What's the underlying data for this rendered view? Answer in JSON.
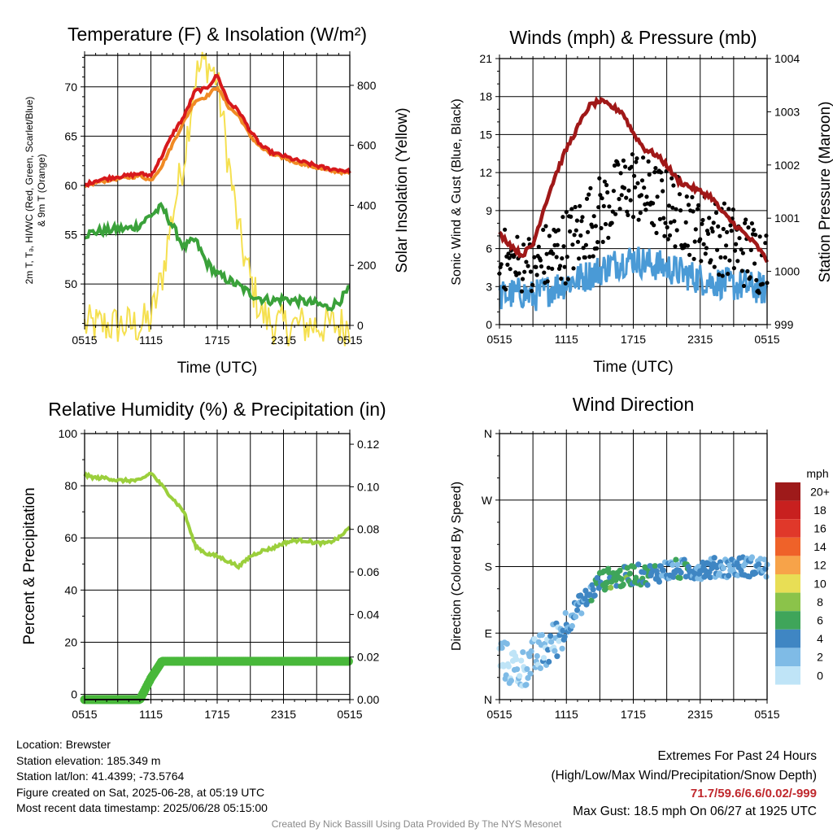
{
  "colors": {
    "temp_red": "#d7191c",
    "hi_orange": "#f08a24",
    "dew_green": "#3aa13a",
    "solar_yellow": "#f5e050",
    "wind_blue": "#4a9ad6",
    "gust_black": "#000000",
    "pressure_maroon": "#a01818",
    "rh_green": "#9bcf3c",
    "precip_green": "#48b83a",
    "extremes_red": "#c0282d"
  },
  "chart_data": [
    {
      "type": "line",
      "title": "Temperature (F) & Insolation (W/m²)",
      "xlabel": "Time (UTC)",
      "ylabel_left_line1": "2m T, Tₔ, HI/WC (Red, Green, Scarlet/Blue)",
      "ylabel_left_line2": "& 9m T (Orange)",
      "ylabel_right": "Solar Insolation (Yellow)",
      "x_ticks": [
        "0515",
        "1115",
        "1715",
        "2315",
        "0515"
      ],
      "y_left_ticks": [
        "50",
        "55",
        "60",
        "65",
        "70"
      ],
      "y_left_range": [
        45.8,
        73.2
      ],
      "y_right_ticks": [
        "0",
        "200",
        "400",
        "600",
        "800"
      ],
      "y_right_range": [
        0,
        900
      ],
      "grid": true,
      "hours": [
        0,
        1,
        2,
        3,
        4,
        5,
        6,
        7,
        8,
        9,
        10,
        11,
        12,
        13,
        14,
        15,
        16,
        17,
        18,
        19,
        20,
        21,
        22,
        23,
        24
      ],
      "series": [
        {
          "key": "temp",
          "values": [
            60.0,
            60.5,
            60.7,
            60.9,
            61.0,
            61.2,
            61.0,
            63.0,
            65.3,
            67.0,
            69.6,
            69.8,
            71.2,
            68.5,
            67.5,
            65.5,
            64.0,
            63.3,
            63.0,
            62.6,
            62.3,
            62.0,
            61.7,
            61.6,
            61.4
          ]
        },
        {
          "key": "dewpoint",
          "values": [
            55.0,
            55.3,
            55.4,
            55.6,
            55.6,
            56.0,
            57.0,
            57.8,
            55.8,
            53.7,
            54.5,
            52.2,
            51.0,
            50.4,
            49.8,
            49.0,
            48.5,
            48.3,
            48.5,
            48.3,
            48.2,
            48.0,
            47.6,
            48.2,
            49.5
          ]
        },
        {
          "key": "temp9m",
          "values": [
            59.8,
            60.3,
            60.5,
            60.7,
            60.8,
            61.0,
            60.5,
            62.0,
            64.3,
            66.5,
            68.6,
            69.0,
            70.0,
            68.0,
            67.0,
            65.0,
            63.8,
            63.1,
            62.8,
            62.4,
            62.1,
            61.8,
            61.5,
            61.4,
            61.2
          ]
        },
        {
          "key": "solar",
          "values": [
            0,
            0,
            0,
            0,
            0,
            0,
            20,
            160,
            380,
            560,
            830,
            880,
            820,
            550,
            300,
            150,
            40,
            5,
            0,
            0,
            0,
            0,
            0,
            0,
            0
          ]
        }
      ]
    },
    {
      "type": "line",
      "title": "Winds (mph) & Pressure (mb)",
      "xlabel": "Time (UTC)",
      "ylabel_left": "Sonic Wind & Gust (Blue, Black)",
      "ylabel_right": "Station Pressure (Maroon)",
      "x_ticks": [
        "0515",
        "1115",
        "1715",
        "2315",
        "0515"
      ],
      "y_left_ticks": [
        "0",
        "3",
        "6",
        "9",
        "12",
        "15",
        "18",
        "21"
      ],
      "y_left_range": [
        0,
        21
      ],
      "y_right_ticks": [
        "999",
        "1000",
        "1001",
        "1002",
        "1003",
        "1004"
      ],
      "y_right_range": [
        999,
        1004
      ],
      "grid": true,
      "hours": [
        0,
        1,
        2,
        3,
        4,
        5,
        6,
        7,
        8,
        9,
        10,
        11,
        12,
        13,
        14,
        15,
        16,
        17,
        18,
        19,
        20,
        21,
        22,
        23,
        24
      ],
      "series": [
        {
          "key": "pressure",
          "values": [
            1000.7,
            1000.5,
            1000.3,
            1000.5,
            1001.2,
            1001.8,
            1002.3,
            1002.7,
            1003.1,
            1003.2,
            1003.1,
            1003.0,
            1002.6,
            1002.3,
            1002.2,
            1002.0,
            1001.7,
            1001.6,
            1001.5,
            1001.4,
            1001.1,
            1000.9,
            1000.7,
            1000.5,
            1000.2
          ]
        },
        {
          "key": "wind",
          "values": [
            2.2,
            2.4,
            2.5,
            2.2,
            2.6,
            3.0,
            3.3,
            3.6,
            3.9,
            4.3,
            4.7,
            5.0,
            5.2,
            4.9,
            4.7,
            4.5,
            4.2,
            3.9,
            3.6,
            3.4,
            3.3,
            3.1,
            3.0,
            2.9,
            2.7
          ]
        },
        {
          "key": "gust",
          "values": [
            4.8,
            4.5,
            4.4,
            4.2,
            5.0,
            5.6,
            6.3,
            7.0,
            8.1,
            8.8,
            9.6,
            10.6,
            11.2,
            10.3,
            9.8,
            9.3,
            8.9,
            8.4,
            7.8,
            7.2,
            6.8,
            6.4,
            5.8,
            5.4,
            5.0
          ]
        }
      ]
    },
    {
      "type": "line",
      "title": "Relative Humidity (%) & Precipitation (in)",
      "ylabel_left": "Percent & Precipitation",
      "x_ticks": [
        "0515",
        "1115",
        "1715",
        "2315",
        "0515"
      ],
      "y_left_ticks": [
        "0",
        "20",
        "40",
        "60",
        "80",
        "100"
      ],
      "y_left_range": [
        -2,
        100
      ],
      "y_right_ticks": [
        "0.00",
        "0.02",
        "0.04",
        "0.06",
        "0.08",
        "0.10",
        "0.12"
      ],
      "y_right_range": [
        0,
        0.125
      ],
      "grid": true,
      "hours": [
        0,
        1,
        2,
        3,
        4,
        5,
        6,
        7,
        8,
        9,
        10,
        11,
        12,
        13,
        14,
        15,
        16,
        17,
        18,
        19,
        20,
        21,
        22,
        23,
        24
      ],
      "series": [
        {
          "key": "rh",
          "values": [
            84,
            83,
            83,
            82,
            82,
            82,
            85,
            80,
            75,
            70,
            57,
            54,
            53,
            51,
            49,
            53,
            55,
            56,
            58,
            59,
            59,
            58,
            58,
            60,
            64
          ]
        },
        {
          "key": "precip",
          "values": [
            0,
            0,
            0,
            0,
            0,
            0,
            0.01,
            0.018,
            0.018,
            0.018,
            0.018,
            0.018,
            0.018,
            0.018,
            0.018,
            0.018,
            0.018,
            0.018,
            0.018,
            0.018,
            0.018,
            0.018,
            0.018,
            0.018,
            0.018
          ]
        }
      ]
    },
    {
      "type": "scatter",
      "title": "Wind Direction",
      "ylabel_left": "Direction (Colored By Speed)",
      "x_ticks": [
        "0515",
        "1115",
        "1715",
        "2315",
        "0515"
      ],
      "y_ticks": [
        "N",
        "E",
        "S",
        "W",
        "N"
      ],
      "y_range_degrees": [
        0,
        360
      ],
      "grid": true,
      "hours": [
        0,
        1,
        2,
        3,
        4,
        5,
        6,
        7,
        8,
        9,
        10,
        11,
        12,
        13,
        14,
        15,
        16,
        17,
        18,
        19,
        20,
        21,
        22,
        23,
        24
      ],
      "series": [
        {
          "key": "direction",
          "values": [
            60,
            45,
            40,
            55,
            65,
            80,
            100,
            125,
            140,
            160,
            165,
            165,
            170,
            168,
            172,
            175,
            176,
            176,
            177,
            178,
            179,
            180,
            180,
            180,
            178
          ]
        },
        {
          "key": "speed",
          "values": [
            1,
            1,
            1,
            2,
            2,
            2,
            3,
            3,
            4,
            5,
            6,
            6,
            5,
            5,
            4,
            4,
            4,
            4,
            3,
            3,
            3,
            3,
            3,
            3,
            3
          ]
        }
      ],
      "legend": {
        "title": "mph",
        "labels": [
          "20+",
          "18",
          "16",
          "14",
          "12",
          "10",
          "8",
          "6",
          "4",
          "2",
          "0"
        ],
        "colors": [
          "#9e1a1a",
          "#c8201f",
          "#e0382a",
          "#ef6229",
          "#f7a349",
          "#e8de55",
          "#8bc34a",
          "#3fa55a",
          "#3f86c3",
          "#7fbbe6",
          "#bfe4f7"
        ]
      }
    }
  ],
  "info_left": {
    "location": "Location: Brewster",
    "elevation": "Station elevation: 185.349 m",
    "latlon": "Station lat/lon: 41.4399; -73.5764",
    "created": "Figure created on Sat, 2025-06-28, at 05:19 UTC",
    "recent": "Most recent data timestamp: 2025/06/28 05:15:00"
  },
  "info_right": {
    "heading1": "Extremes For Past 24 Hours",
    "heading2": "(High/Low/Max Wind/Precipitation/Snow Depth)",
    "extremes": "71.7/59.6/6.6/0.02/-999",
    "max_gust": "Max Gust: 18.5 mph On 06/27 at 1925 UTC"
  },
  "credit": "Created By Nick Bassill Using Data Provided By The NYS Mesonet"
}
